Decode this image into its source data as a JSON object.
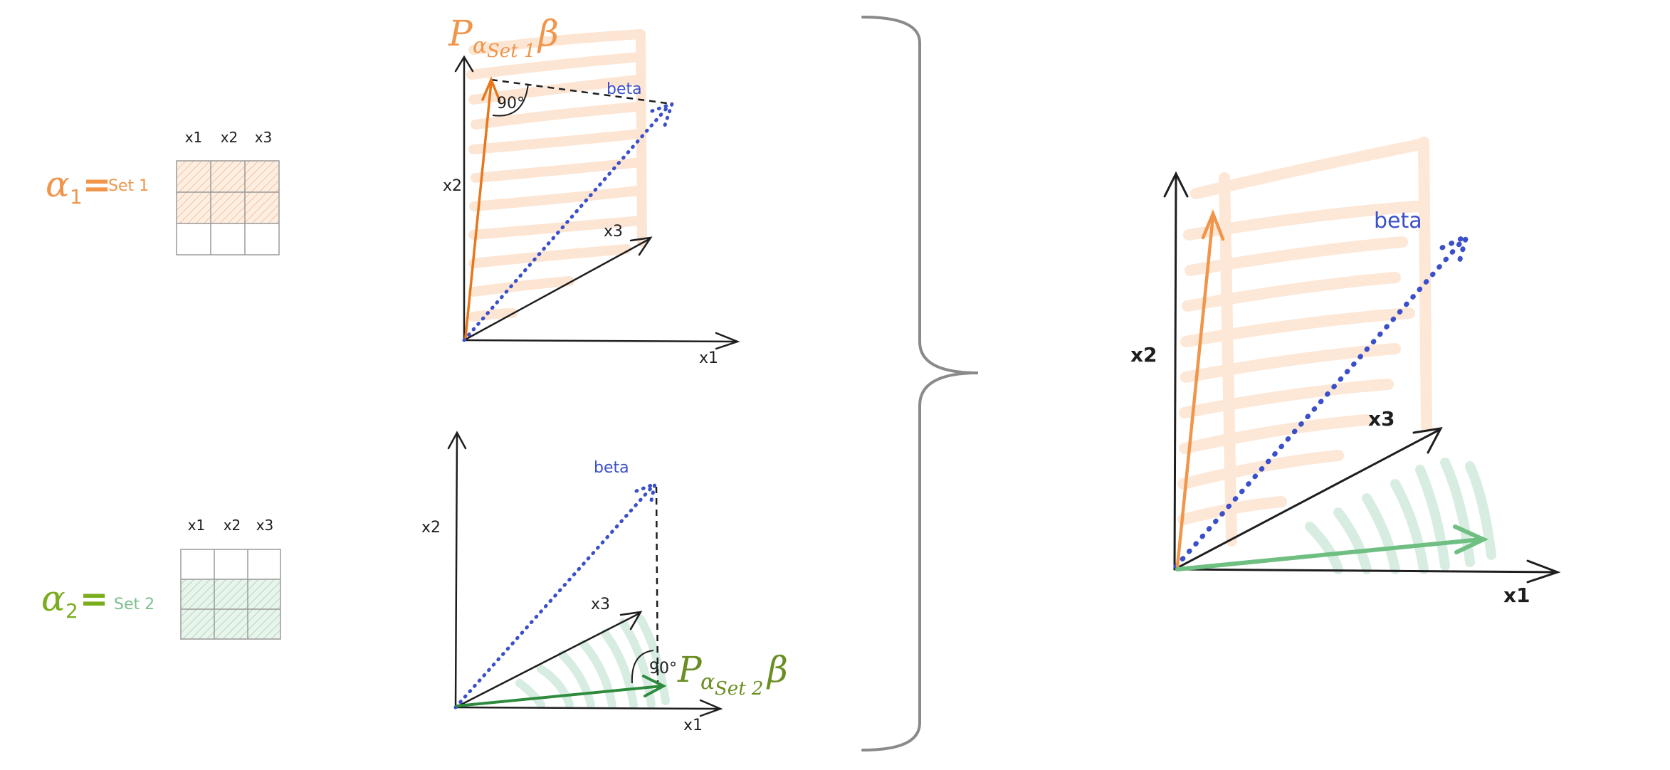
{
  "colors": {
    "orange": "#f0954a",
    "orange_dark": "#e8761a",
    "orange_fill": "#fde3cf",
    "green": "#7aad1e",
    "green_dark": "#2e8b3d",
    "green_light": "#6fbf82",
    "green_fill": "#d6ede0",
    "blue": "#3a4fc9",
    "black": "#1e1e1e",
    "grid": "#9a9a9a",
    "brace": "#8a8a8a",
    "projection_label_set2": "#6b8e23"
  },
  "left": {
    "alpha1": {
      "symbol": "α",
      "subscript": "1",
      "equals": "=",
      "set_label": "Set 1",
      "columns": [
        "x1",
        "x2",
        "x3"
      ],
      "filled_rows": [
        0,
        1
      ]
    },
    "alpha2": {
      "symbol": "α",
      "subscript": "2",
      "equals": "=",
      "set_label": "Set 2",
      "columns": [
        "x1",
        "x2",
        "x3"
      ],
      "filled_rows": [
        1,
        2
      ]
    }
  },
  "top_plot": {
    "axis_x1": "x1",
    "axis_x2": "x2",
    "axis_x3": "x3",
    "beta_label": "beta",
    "angle_label": "90°",
    "projection": {
      "P": "P",
      "alpha": "α",
      "sub": "Set 1",
      "beta": "β"
    }
  },
  "bottom_plot": {
    "axis_x1": "x1",
    "axis_x2": "x2",
    "axis_x3": "x3",
    "beta_label": "beta",
    "angle_label": "90°",
    "projection": {
      "P": "P",
      "alpha": "α",
      "sub": "Set 2",
      "beta": "β"
    }
  },
  "right_plot": {
    "axis_x1": "x1",
    "axis_x2": "x2",
    "axis_x3": "x3",
    "beta_label": "beta"
  }
}
